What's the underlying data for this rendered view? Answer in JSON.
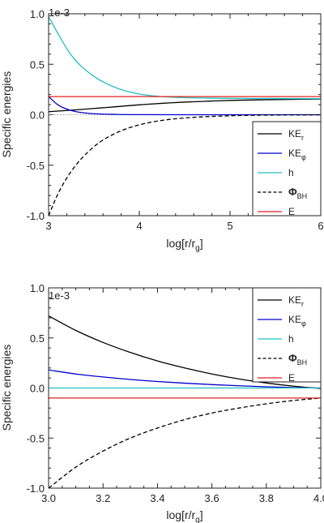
{
  "chart_data": [
    {
      "type": "line",
      "xlabel": "log[r/r_g]",
      "ylabel": "Specific energies",
      "scale_label": "1e-3",
      "xlim": [
        3,
        6
      ],
      "ylim": [
        -1.0,
        1.0
      ],
      "xticks": [
        "3",
        "4",
        "5",
        "6"
      ],
      "yticks": [
        "-1.0",
        "-0.5",
        "0.0",
        "0.5",
        "1.0"
      ],
      "zero_line": "dotted gray",
      "legend": {
        "position": "bottom-right"
      },
      "series": [
        {
          "name": "KE_r",
          "color": "#000000",
          "style": "solid",
          "x": [
            3.0,
            3.25,
            3.5,
            3.75,
            4.0,
            4.25,
            4.5,
            4.75,
            5.0,
            5.5,
            6.0
          ],
          "y": [
            0.03,
            0.045,
            0.062,
            0.08,
            0.098,
            0.113,
            0.125,
            0.134,
            0.142,
            0.15,
            0.155
          ]
        },
        {
          "name": "KE_φ",
          "color": "#0000cc",
          "style": "solid",
          "x": [
            3.0,
            3.1,
            3.2,
            3.3,
            3.4,
            3.5,
            3.75,
            4.0,
            5.0,
            6.0
          ],
          "y": [
            0.18,
            0.1,
            0.056,
            0.031,
            0.018,
            0.01,
            0.003,
            0.001,
            0.0,
            0.0
          ]
        },
        {
          "name": "h",
          "color": "#22c0c0",
          "style": "solid",
          "x": [
            3.0,
            3.25,
            3.5,
            3.75,
            4.0,
            4.25,
            4.5,
            4.75,
            5.0,
            5.5,
            6.0
          ],
          "y": [
            0.97,
            0.59,
            0.38,
            0.265,
            0.205,
            0.18,
            0.17,
            0.165,
            0.162,
            0.16,
            0.158
          ]
        },
        {
          "name": "Φ_BH",
          "color": "#000000",
          "style": "dashed",
          "x": [
            3.0,
            3.1,
            3.25,
            3.5,
            3.75,
            4.0,
            4.25,
            4.5,
            5.0,
            5.5,
            6.0
          ],
          "y": [
            -1.0,
            -0.79,
            -0.56,
            -0.316,
            -0.178,
            -0.1,
            -0.056,
            -0.032,
            -0.01,
            -0.003,
            -0.001
          ]
        },
        {
          "name": "E",
          "color": "#e02020",
          "style": "solid",
          "x": [
            3.0,
            6.0
          ],
          "y": [
            0.18,
            0.18
          ]
        }
      ]
    },
    {
      "type": "line",
      "xlabel": "log[r/r_g]",
      "ylabel": "Specific energies",
      "scale_label": "1e-3",
      "xlim": [
        3.0,
        4.0
      ],
      "ylim": [
        -1.0,
        1.0
      ],
      "xticks": [
        "3.0",
        "3.2",
        "3.4",
        "3.6",
        "3.8",
        "4.0"
      ],
      "yticks": [
        "-1.0",
        "-0.5",
        "0.0",
        "0.5",
        "1.0"
      ],
      "zero_line": "dotted gray",
      "legend": {
        "position": "top-right"
      },
      "series": [
        {
          "name": "KE_r",
          "color": "#000000",
          "style": "solid",
          "x": [
            3.0,
            3.1,
            3.2,
            3.3,
            3.4,
            3.5,
            3.6,
            3.7,
            3.8,
            3.9,
            4.0
          ],
          "y": [
            0.72,
            0.575,
            0.455,
            0.355,
            0.27,
            0.2,
            0.14,
            0.09,
            0.05,
            0.018,
            -0.005
          ]
        },
        {
          "name": "KE_φ",
          "color": "#0000cc",
          "style": "solid",
          "x": [
            3.0,
            3.1,
            3.2,
            3.3,
            3.4,
            3.5,
            3.6,
            3.7,
            3.8,
            3.9,
            4.0
          ],
          "y": [
            0.18,
            0.14,
            0.11,
            0.085,
            0.065,
            0.048,
            0.034,
            0.022,
            0.012,
            0.004,
            0.0
          ]
        },
        {
          "name": "h",
          "color": "#22c0c0",
          "style": "solid",
          "x": [
            3.0,
            4.0
          ],
          "y": [
            0.0,
            0.0
          ]
        },
        {
          "name": "Φ_BH",
          "color": "#000000",
          "style": "dashed",
          "x": [
            3.0,
            3.1,
            3.2,
            3.3,
            3.4,
            3.5,
            3.6,
            3.7,
            3.8,
            3.9,
            4.0
          ],
          "y": [
            -1.0,
            -0.79,
            -0.63,
            -0.5,
            -0.4,
            -0.316,
            -0.25,
            -0.2,
            -0.158,
            -0.125,
            -0.1
          ]
        },
        {
          "name": "E",
          "color": "#e02020",
          "style": "solid",
          "x": [
            3.0,
            4.0
          ],
          "y": [
            -0.1,
            -0.1
          ]
        }
      ]
    }
  ]
}
